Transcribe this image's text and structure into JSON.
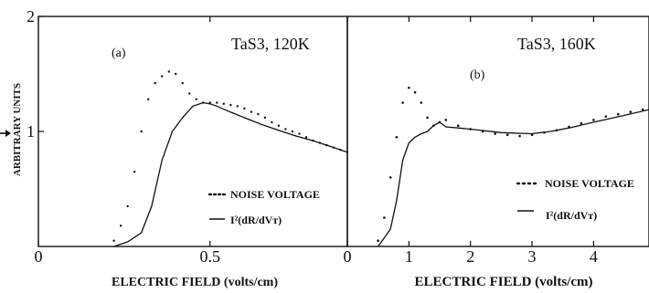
{
  "chart_data": [
    {
      "type": "line",
      "panel_label": "(a)",
      "title": "TaS3, 120K",
      "xlabel": "ELECTRIC FIELD (volts/cm)",
      "ylabel": "ARBITRARY UNITS",
      "xlim": [
        0,
        0.9
      ],
      "ylim": [
        0,
        2
      ],
      "x_tick_labels": [
        {
          "value": 0,
          "label": "0"
        },
        {
          "value": 0.5,
          "label": "0.5"
        }
      ],
      "y_tick_labels": [
        {
          "value": 1,
          "label": "1"
        },
        {
          "value": 2,
          "label": "2"
        }
      ],
      "legend_position": "lower-right",
      "series": [
        {
          "name": "NOISE VOLTAGE",
          "style": "dotted",
          "x": [
            0.22,
            0.24,
            0.26,
            0.28,
            0.3,
            0.32,
            0.34,
            0.36,
            0.38,
            0.4,
            0.42,
            0.44,
            0.46,
            0.48,
            0.5,
            0.52,
            0.54,
            0.56,
            0.58,
            0.6,
            0.62,
            0.64,
            0.66,
            0.68,
            0.7,
            0.72,
            0.74,
            0.76,
            0.78,
            0.8,
            0.82,
            0.84,
            0.86,
            0.88,
            0.9
          ],
          "values": [
            0.05,
            0.18,
            0.35,
            0.65,
            1.0,
            1.28,
            1.42,
            1.48,
            1.52,
            1.5,
            1.42,
            1.33,
            1.28,
            1.25,
            1.25,
            1.25,
            1.24,
            1.23,
            1.22,
            1.2,
            1.17,
            1.15,
            1.12,
            1.08,
            1.05,
            1.02,
            1.0,
            0.98,
            0.95,
            0.92,
            0.9,
            0.88,
            0.86,
            0.84,
            0.82
          ]
        },
        {
          "name": "I²(dR/dVᴛ)",
          "style": "solid",
          "x": [
            0.22,
            0.26,
            0.3,
            0.33,
            0.36,
            0.39,
            0.42,
            0.45,
            0.48,
            0.5,
            0.52,
            0.55,
            0.6,
            0.65,
            0.7,
            0.75,
            0.8,
            0.85,
            0.9
          ],
          "values": [
            0.0,
            0.04,
            0.12,
            0.35,
            0.75,
            1.0,
            1.12,
            1.22,
            1.25,
            1.24,
            1.22,
            1.18,
            1.12,
            1.06,
            1.01,
            0.96,
            0.92,
            0.87,
            0.82
          ]
        }
      ]
    },
    {
      "type": "line",
      "panel_label": "(b)",
      "title": "TaS3, 160K",
      "xlabel": "ELECTRIC FIELD (volts/cm)",
      "ylabel": "",
      "xlim": [
        0,
        4.9
      ],
      "ylim": [
        0,
        2
      ],
      "x_tick_labels": [
        {
          "value": 0,
          "label": "0"
        },
        {
          "value": 1,
          "label": "1"
        },
        {
          "value": 2,
          "label": "2"
        },
        {
          "value": 3,
          "label": "3"
        },
        {
          "value": 4,
          "label": "4"
        }
      ],
      "legend_position": "lower-right",
      "series": [
        {
          "name": "NOISE VOLTAGE",
          "style": "dotted",
          "x": [
            0.5,
            0.6,
            0.7,
            0.8,
            0.9,
            1.0,
            1.1,
            1.2,
            1.3,
            1.4,
            1.5,
            1.6,
            1.8,
            2.0,
            2.2,
            2.4,
            2.6,
            2.8,
            3.0,
            3.2,
            3.4,
            3.6,
            3.8,
            4.0,
            4.2,
            4.4,
            4.6,
            4.8
          ],
          "values": [
            0.05,
            0.25,
            0.6,
            0.95,
            1.25,
            1.38,
            1.34,
            1.25,
            1.12,
            1.05,
            1.08,
            1.1,
            1.05,
            1.02,
            1.0,
            0.98,
            0.97,
            0.96,
            0.97,
            0.99,
            1.01,
            1.04,
            1.07,
            1.1,
            1.13,
            1.15,
            1.17,
            1.19
          ]
        },
        {
          "name": "I²(dR/dVᴛ)",
          "style": "solid",
          "x": [
            0.5,
            0.7,
            0.8,
            0.9,
            1.0,
            1.1,
            1.2,
            1.3,
            1.4,
            1.5,
            1.6,
            1.8,
            2.0,
            2.5,
            3.0,
            3.3,
            3.6,
            4.0,
            4.5,
            4.9
          ],
          "values": [
            0.0,
            0.15,
            0.4,
            0.75,
            0.9,
            0.95,
            0.98,
            1.0,
            1.05,
            1.08,
            1.04,
            1.03,
            1.02,
            0.99,
            0.98,
            1.0,
            1.03,
            1.08,
            1.14,
            1.19
          ]
        }
      ]
    }
  ]
}
